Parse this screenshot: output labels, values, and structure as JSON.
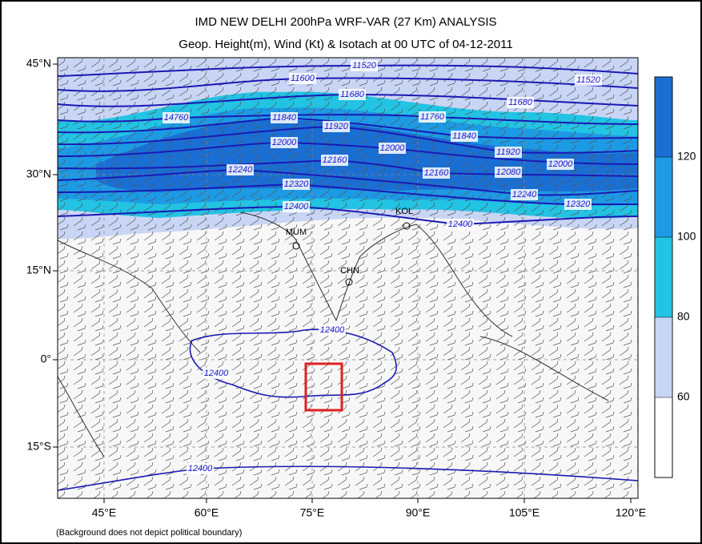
{
  "header": {
    "title": "IMD NEW DELHI 200hPa WRF-VAR (27 Km) ANALYSIS",
    "subtitle": "Geop. Height(m), Wind (Kt) & Isotach  at 00 UTC of 04-12-2011"
  },
  "map": {
    "lat_labels": [
      "45°N",
      "30°N",
      "15°N",
      "0°",
      "15°S"
    ],
    "lon_labels": [
      "45°E",
      "60°E",
      "75°E",
      "90°E",
      "105°E",
      "120°E"
    ],
    "stations": [
      "MUM",
      "KOL",
      "CHN"
    ],
    "contour_labels": [
      "11520",
      "11600",
      "11680",
      "14760",
      "11840",
      "11920",
      "12000",
      "12160",
      "12240",
      "12320",
      "12400",
      "11520",
      "11680",
      "11760",
      "11840",
      "12000",
      "11920",
      "12080",
      "12000",
      "12160",
      "12240",
      "12320",
      "12400",
      "12400",
      "12400",
      "12400"
    ]
  },
  "colorbar": {
    "ticks": [
      60,
      80,
      100,
      120
    ]
  },
  "footnote": "(Background does not depict political boundary)"
}
